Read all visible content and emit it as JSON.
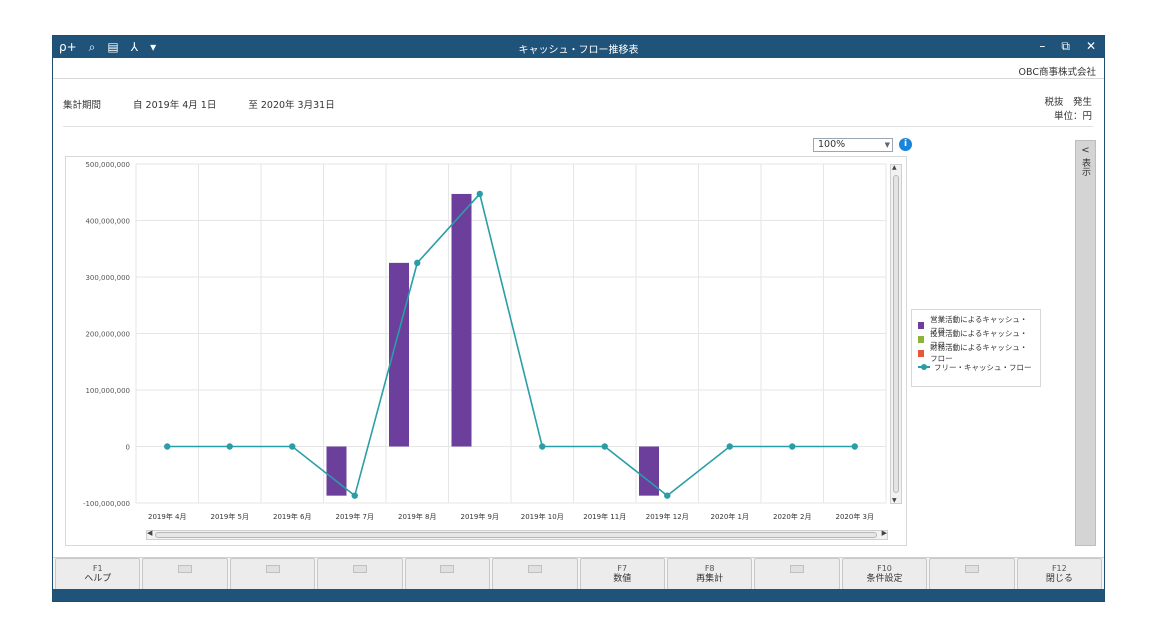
{
  "window": {
    "title": "キャッシュ・フロー推移表",
    "company": "OBC商事株式会社"
  },
  "toolbar": {
    "icons": [
      "zoom-in-icon",
      "zoom-search-icon",
      "print-icon",
      "export-icon",
      "dropdown-arrow-icon"
    ],
    "glyphs": [
      "ρ+",
      "⌕",
      "▤",
      "⅄",
      "▾"
    ]
  },
  "window_controls": {
    "minimize": "–",
    "restore": "⧉",
    "close": "✕"
  },
  "period": {
    "label": "集計期間",
    "from": "自 2019年 4月 1日",
    "to": "至 2020年 3月31日"
  },
  "tax": {
    "line1": "税抜　発生",
    "line2": "単位：円"
  },
  "zoom": {
    "value": "100%"
  },
  "side_panel": {
    "label": "表示"
  },
  "chart_data": {
    "type": "bar",
    "categories": [
      "2019年 4月",
      "2019年 5月",
      "2019年 6月",
      "2019年 7月",
      "2019年 8月",
      "2019年 9月",
      "2019年 10月",
      "2019年 11月",
      "2019年 12月",
      "2020年 1月",
      "2020年 2月",
      "2020年 3月"
    ],
    "ylim": [
      -100000000,
      500000000
    ],
    "yticks": [
      500000000,
      400000000,
      300000000,
      200000000,
      100000000,
      0,
      -100000000
    ],
    "ytick_labels": [
      "500,000,000",
      "400,000,000",
      "300,000,000",
      "200,000,000",
      "100,000,000",
      "0",
      "-100,000,000"
    ],
    "grid": true,
    "legend_position": "right",
    "series": [
      {
        "name": "営業活動によるキャッシュ・フロー",
        "type": "bar",
        "color": "#6c3f9c",
        "values": [
          0,
          0,
          0,
          -87000000,
          325000000,
          447000000,
          0,
          0,
          -87000000,
          0,
          0,
          0
        ]
      },
      {
        "name": "投資活動によるキャッシュ・フロー",
        "type": "bar",
        "color": "#8db33a",
        "values": [
          0,
          0,
          0,
          0,
          0,
          0,
          0,
          0,
          0,
          0,
          0,
          0
        ]
      },
      {
        "name": "財務活動によるキャッシュ・フロー",
        "type": "bar",
        "color": "#e8563a",
        "values": [
          0,
          0,
          0,
          0,
          0,
          0,
          0,
          0,
          0,
          0,
          0,
          0
        ]
      },
      {
        "name": "フリー・キャッシュ・フロー",
        "type": "line",
        "color": "#2a9ea6",
        "values": [
          0,
          0,
          0,
          -87000000,
          325000000,
          447000000,
          0,
          0,
          -87000000,
          0,
          0,
          0
        ]
      }
    ]
  },
  "fkeys": [
    {
      "key": "F1",
      "label": "ヘルプ"
    },
    {
      "key": "",
      "label": ""
    },
    {
      "key": "",
      "label": ""
    },
    {
      "key": "",
      "label": ""
    },
    {
      "key": "",
      "label": ""
    },
    {
      "key": "",
      "label": ""
    },
    {
      "key": "F7",
      "label": "数値"
    },
    {
      "key": "F8",
      "label": "再集計"
    },
    {
      "key": "",
      "label": ""
    },
    {
      "key": "F10",
      "label": "条件設定"
    },
    {
      "key": "",
      "label": ""
    },
    {
      "key": "F12",
      "label": "閉じる"
    }
  ]
}
